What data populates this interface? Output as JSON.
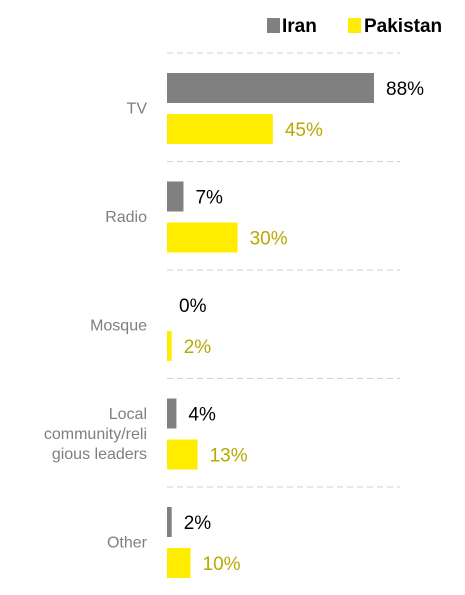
{
  "chart_data": {
    "type": "bar",
    "orientation": "horizontal",
    "categories": [
      "TV",
      "Radio",
      "Mosque",
      "Local community/religious leaders",
      "Other"
    ],
    "category_label_lines": [
      [
        "TV"
      ],
      [
        "Radio"
      ],
      [
        "Mosque"
      ],
      [
        "Local",
        "community/reli",
        "gious leaders"
      ],
      [
        "Other"
      ]
    ],
    "series": [
      {
        "name": "Iran",
        "values": [
          88,
          7,
          0,
          4,
          2
        ],
        "labels": [
          "88%",
          "7%",
          "0%",
          "4%",
          "2%"
        ],
        "color": "#808080",
        "label_color": "#000000"
      },
      {
        "name": "Pakistan",
        "values": [
          45,
          30,
          2,
          13,
          10
        ],
        "labels": [
          "45%",
          "30%",
          "2%",
          "13%",
          "10%"
        ],
        "color": "#ffed00",
        "label_color": "#b8a800"
      }
    ],
    "xlim": [
      0,
      100
    ],
    "unit": "%",
    "legend_position": "top-right",
    "grid": false,
    "category_separators": "dashed"
  }
}
